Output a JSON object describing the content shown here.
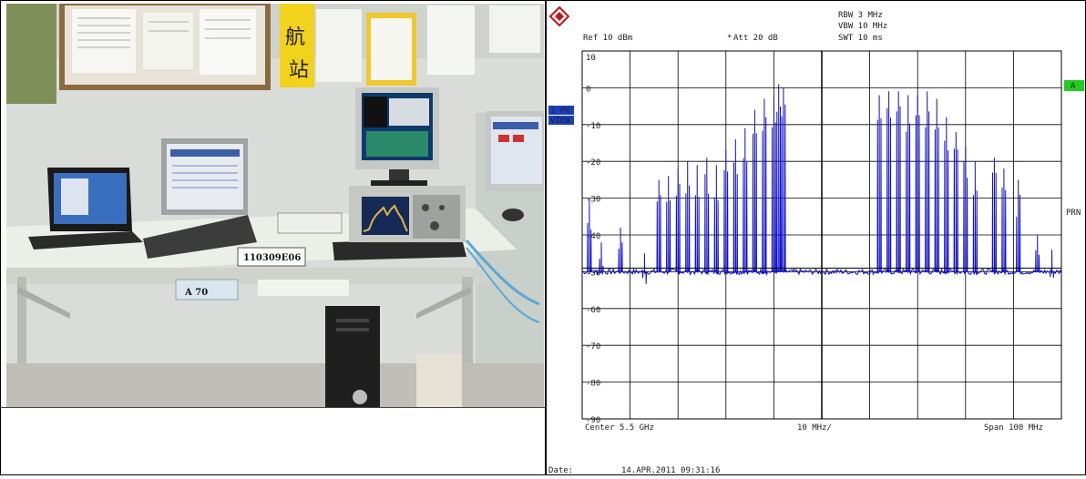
{
  "photo": {
    "equipment_tag": "110309E06",
    "sign_cjk": [
      "航",
      "站"
    ],
    "table_sign": "A 70"
  },
  "analyzer": {
    "header": {
      "rbw": "RBW 3 MHz",
      "vbw": "VBW 10 MHz",
      "ref": "Ref  10 dBm",
      "att": "Att  20 dB",
      "swt": "SWT 10 ms"
    },
    "side_labels": {
      "trace_mode": "1 PK",
      "view": "VIEW",
      "marker_a": "A",
      "prn": "PRN"
    },
    "y_ticks": [
      "10",
      "0",
      "-10",
      "-20",
      "-30",
      "-40",
      "-50",
      "-60",
      "-70",
      "-80",
      "-90"
    ],
    "footer": {
      "center": "Center 5.5 GHz",
      "div": "10 MHz/",
      "span": "Span 100 MHz"
    },
    "date_label": "Date:",
    "date_value": "14.APR.2011  09:31:16",
    "colors": {
      "trace": "#1010d0",
      "marker_green": "#22cc22",
      "label_blue": "#1a3fbf"
    }
  },
  "chart_data": {
    "type": "line",
    "title": "",
    "xlabel": "",
    "ylabel": "",
    "x_range_mhz": [
      5450,
      5550
    ],
    "ylim": [
      -90,
      10
    ],
    "y_unit": "dBm",
    "noise_floor": -50,
    "grid": true,
    "series": [
      {
        "values_peaks": [
          {
            "x": 5451.5,
            "y": -30
          },
          {
            "x": 5454,
            "y": -42
          },
          {
            "x": 5458,
            "y": -38
          },
          {
            "x": 5463,
            "y": -45
          },
          {
            "x": 5466,
            "y": -25
          },
          {
            "x": 5468,
            "y": -24
          },
          {
            "x": 5470,
            "y": -22
          },
          {
            "x": 5472,
            "y": -20
          },
          {
            "x": 5474,
            "y": -21
          },
          {
            "x": 5476,
            "y": -19
          },
          {
            "x": 5478,
            "y": -21
          },
          {
            "x": 5480,
            "y": -17
          },
          {
            "x": 5482,
            "y": -14
          },
          {
            "x": 5484,
            "y": -11
          },
          {
            "x": 5486,
            "y": -6
          },
          {
            "x": 5488,
            "y": -3
          },
          {
            "x": 5490,
            "y": -2
          },
          {
            "x": 5491,
            "y": 1
          },
          {
            "x": 5492,
            "y": 0
          },
          {
            "x": 5512,
            "y": -2
          },
          {
            "x": 5514,
            "y": -1
          },
          {
            "x": 5516,
            "y": -1
          },
          {
            "x": 5518,
            "y": -2
          },
          {
            "x": 5520,
            "y": -2
          },
          {
            "x": 5522,
            "y": -1
          },
          {
            "x": 5524,
            "y": -3
          },
          {
            "x": 5526,
            "y": -8
          },
          {
            "x": 5528,
            "y": -12
          },
          {
            "x": 5530,
            "y": -16
          },
          {
            "x": 5532,
            "y": -20
          },
          {
            "x": 5536,
            "y": -19
          },
          {
            "x": 5538,
            "y": -22
          },
          {
            "x": 5541,
            "y": -25
          },
          {
            "x": 5545,
            "y": -40
          },
          {
            "x": 5548,
            "y": -44
          }
        ]
      }
    ]
  }
}
